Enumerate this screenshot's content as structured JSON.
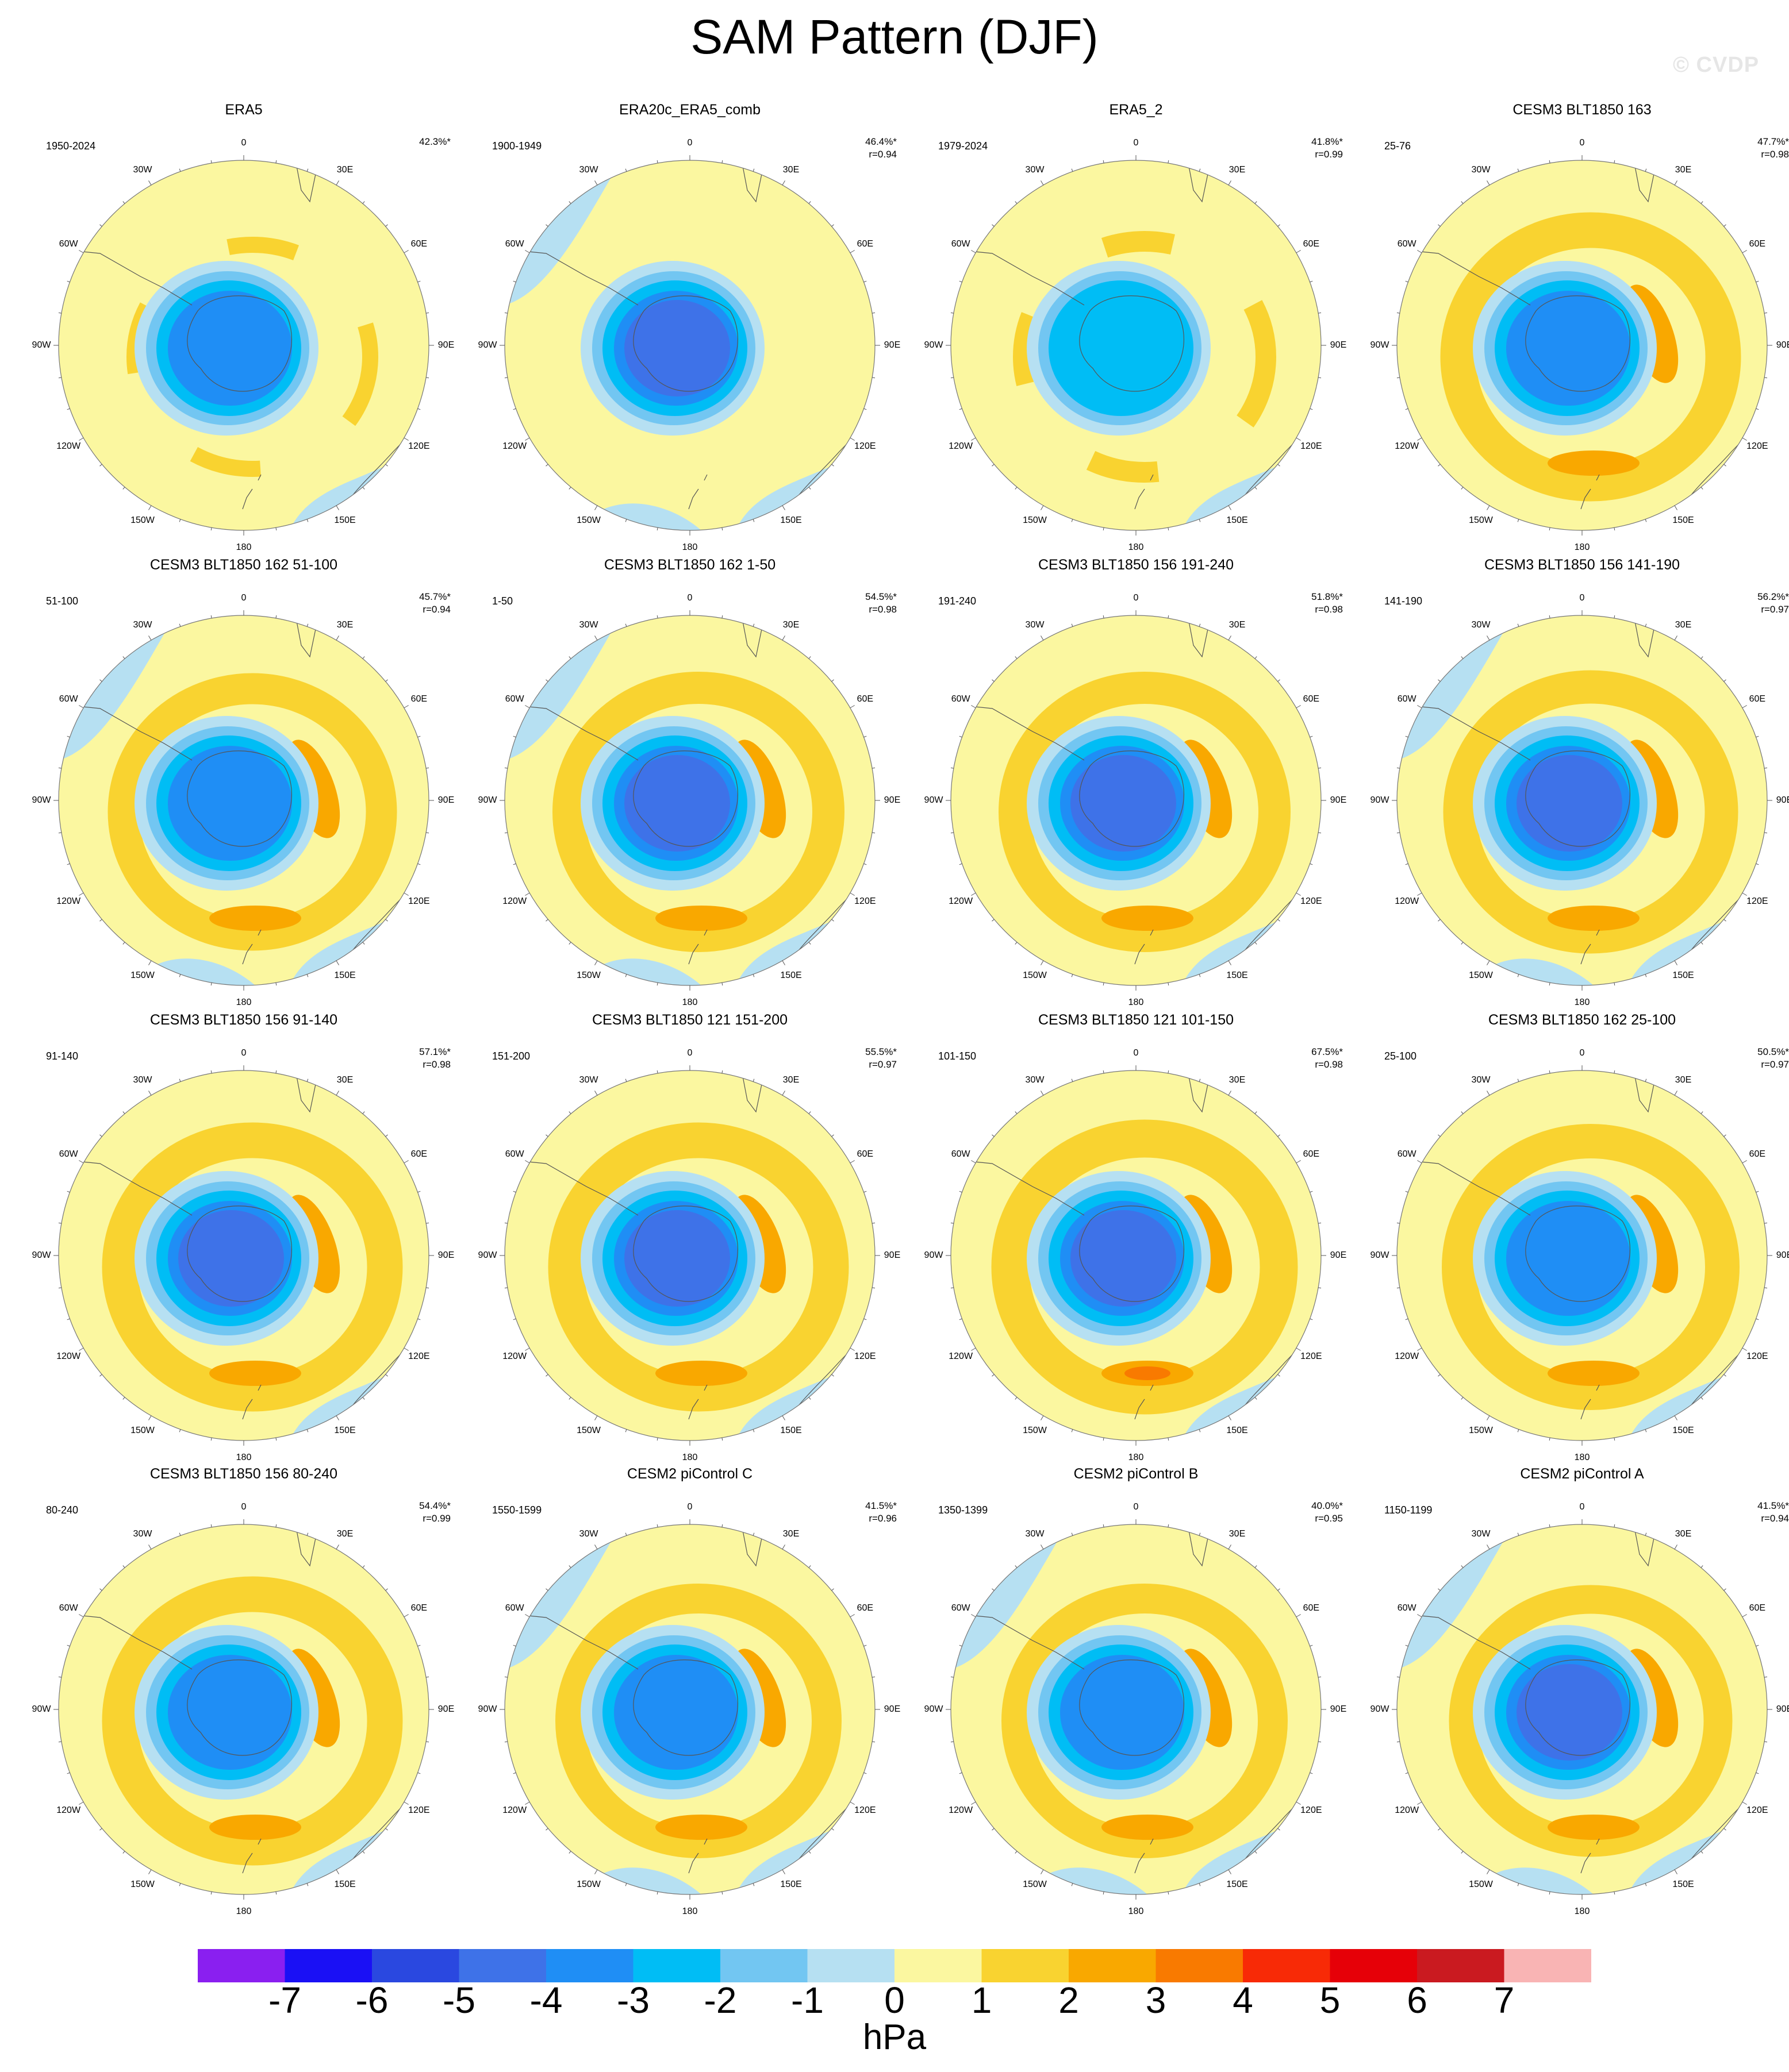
{
  "figure": {
    "title": "SAM Pattern (DJF)",
    "watermark": "© CVDP"
  },
  "longitude_labels": [
    "0",
    "30E",
    "60E",
    "90E",
    "120E",
    "150E",
    "180",
    "150W",
    "120W",
    "90W",
    "60W",
    "30W"
  ],
  "panels": [
    {
      "title": "ERA5",
      "period": "1950-2024",
      "pct": "42.3%*",
      "r": ""
    },
    {
      "title": "ERA20c_ERA5_comb",
      "period": "1900-1949",
      "pct": "46.4%*",
      "r": "r=0.94"
    },
    {
      "title": "ERA5_2",
      "period": "1979-2024",
      "pct": "41.8%*",
      "r": "r=0.99"
    },
    {
      "title": "CESM3 BLT1850 163",
      "period": "25-76",
      "pct": "47.7%*",
      "r": "r=0.98"
    },
    {
      "title": "CESM3 BLT1850 162 51-100",
      "period": "51-100",
      "pct": "45.7%*",
      "r": "r=0.94"
    },
    {
      "title": "CESM3 BLT1850 162 1-50",
      "period": "1-50",
      "pct": "54.5%*",
      "r": "r=0.98"
    },
    {
      "title": "CESM3 BLT1850 156 191-240",
      "period": "191-240",
      "pct": "51.8%*",
      "r": "r=0.98"
    },
    {
      "title": "CESM3 BLT1850 156 141-190",
      "period": "141-190",
      "pct": "56.2%*",
      "r": "r=0.97"
    },
    {
      "title": "CESM3 BLT1850 156 91-140",
      "period": "91-140",
      "pct": "57.1%*",
      "r": "r=0.98"
    },
    {
      "title": "CESM3 BLT1850 121 151-200",
      "period": "151-200",
      "pct": "55.5%*",
      "r": "r=0.97"
    },
    {
      "title": "CESM3 BLT1850 121 101-150",
      "period": "101-150",
      "pct": "67.5%*",
      "r": "r=0.98"
    },
    {
      "title": "CESM3 BLT1850 162 25-100",
      "period": "25-100",
      "pct": "50.5%*",
      "r": "r=0.97"
    },
    {
      "title": "CESM3 BLT1850 156 80-240",
      "period": "80-240",
      "pct": "54.4%*",
      "r": "r=0.99"
    },
    {
      "title": "CESM2 piControl C",
      "period": "1550-1599",
      "pct": "41.5%*",
      "r": "r=0.96"
    },
    {
      "title": "CESM2 piControl B",
      "period": "1350-1399",
      "pct": "40.0%*",
      "r": "r=0.95"
    },
    {
      "title": "CESM2 piControl A",
      "period": "1150-1199",
      "pct": "41.5%*",
      "r": "r=0.94"
    }
  ],
  "colorbar": {
    "units": "hPa",
    "labels": [
      "-7",
      "-6",
      "-5",
      "-4",
      "-3",
      "-2",
      "-1",
      "0",
      "1",
      "2",
      "3",
      "4",
      "5",
      "6",
      "7"
    ],
    "colors": [
      "#8a1ff0",
      "#1a10f5",
      "#2a48e0",
      "#3e72e8",
      "#1f8ef5",
      "#00bdf5",
      "#72c6f2",
      "#b6e0f2",
      "#fbf7a0",
      "#f9d330",
      "#f9a800",
      "#f97a00",
      "#f82a06",
      "#e60008",
      "#ca1a20",
      "#f9b4b4"
    ]
  }
}
